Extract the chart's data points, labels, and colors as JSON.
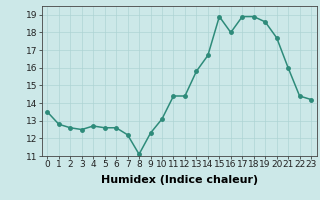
{
  "x": [
    0,
    1,
    2,
    3,
    4,
    5,
    6,
    7,
    8,
    9,
    10,
    11,
    12,
    13,
    14,
    15,
    16,
    17,
    18,
    19,
    20,
    21,
    22,
    23
  ],
  "y": [
    13.5,
    12.8,
    12.6,
    12.5,
    12.7,
    12.6,
    12.6,
    12.2,
    11.1,
    12.3,
    13.1,
    14.4,
    14.4,
    15.8,
    16.7,
    18.9,
    18.0,
    18.9,
    18.9,
    18.6,
    17.7,
    16.0,
    14.4,
    14.2
  ],
  "xlabel": "Humidex (Indice chaleur)",
  "ylim": [
    11,
    19.5
  ],
  "xlim": [
    -0.5,
    23.5
  ],
  "yticks": [
    11,
    12,
    13,
    14,
    15,
    16,
    17,
    18,
    19
  ],
  "xticks": [
    0,
    1,
    2,
    3,
    4,
    5,
    6,
    7,
    8,
    9,
    10,
    11,
    12,
    13,
    14,
    15,
    16,
    17,
    18,
    19,
    20,
    21,
    22,
    23
  ],
  "line_color": "#2e8b7a",
  "marker_color": "#2e8b7a",
  "bg_color": "#cce8e8",
  "grid_color": "#aed4d4",
  "xlabel_fontsize": 8,
  "tick_fontsize": 6.5,
  "line_width": 1.1,
  "marker_size": 2.5
}
